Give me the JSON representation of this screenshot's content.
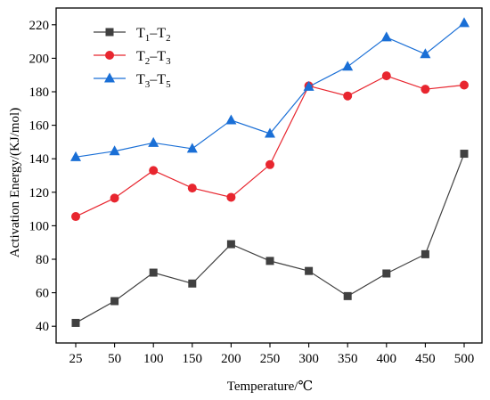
{
  "chart_data": {
    "type": "line",
    "xlabel": "Temperature/℃",
    "ylabel": "Activation Energy/(KJ/mol)",
    "categories": [
      "25",
      "50",
      "100",
      "150",
      "200",
      "250",
      "300",
      "350",
      "400",
      "450",
      "500"
    ],
    "ylim": [
      30,
      230
    ],
    "yticks": [
      40,
      60,
      80,
      100,
      120,
      140,
      160,
      180,
      200,
      220
    ],
    "grid": false,
    "legend_position": "top-left",
    "series": [
      {
        "name": "T1–T2",
        "name_main": "T",
        "name_sub1": "1",
        "name_sep": "–T",
        "name_sub2": "2",
        "color": "#404040",
        "marker": "square",
        "values": [
          42,
          55,
          72,
          65.5,
          89,
          79,
          73,
          58,
          71.5,
          83,
          143
        ]
      },
      {
        "name": "T2–T3",
        "name_main": "T",
        "name_sub1": "2",
        "name_sep": "–T",
        "name_sub2": "3",
        "color": "#e8262f",
        "marker": "circle",
        "values": [
          105.5,
          116.5,
          133,
          122.5,
          117,
          136.5,
          183.5,
          177.5,
          189.5,
          181.5,
          184
        ]
      },
      {
        "name": "T3–T5",
        "name_main": "T",
        "name_sub1": "3",
        "name_sep": "–T",
        "name_sub2": "5",
        "color": "#1a6fd6",
        "marker": "triangle",
        "values": [
          141,
          144.5,
          149.5,
          146,
          163,
          155,
          183,
          195,
          212.5,
          202.5,
          221
        ]
      }
    ]
  }
}
